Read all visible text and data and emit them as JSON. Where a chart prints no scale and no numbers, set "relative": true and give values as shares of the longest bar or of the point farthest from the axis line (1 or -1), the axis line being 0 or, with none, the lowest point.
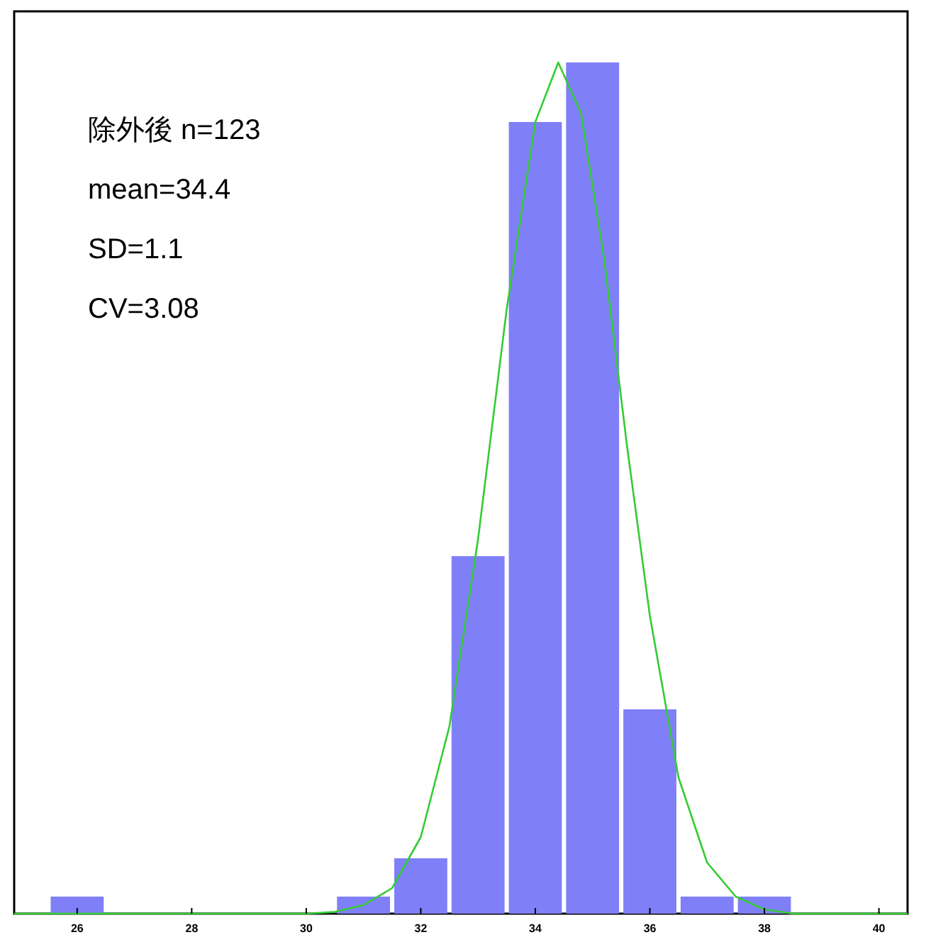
{
  "chart_data": {
    "type": "histogram",
    "relative": true,
    "color": "#7f7ff7",
    "bins": [
      25.5,
      26.5,
      27.5,
      28.5,
      29.5,
      30.5,
      31.5,
      32.5,
      33.5,
      34.5,
      35.5,
      36.5,
      37.5,
      38.5
    ],
    "values": [
      0.02,
      0,
      0,
      0,
      0,
      0.02,
      0.065,
      0.42,
      0.93,
      1,
      0.24,
      0.02,
      0.02
    ],
    "xlim": [
      24.9,
      40.5
    ],
    "xticks": [
      26,
      28,
      30,
      32,
      34,
      36,
      38,
      40
    ],
    "annotations": [
      "除外後 n=123",
      "mean=34.4",
      "SD=1.1",
      "CV=3.08"
    ],
    "series": [
      {
        "type": "line",
        "color": "#33cc33",
        "x": [
          24.9,
          30,
          30.5,
          31,
          31.5,
          32,
          32.5,
          33,
          33.5,
          34,
          34.4,
          34.8,
          35.2,
          35.6,
          36,
          36.5,
          37,
          37.5,
          38,
          38.5,
          40.5
        ],
        "values": [
          0,
          0,
          0.002,
          0.01,
          0.03,
          0.09,
          0.22,
          0.44,
          0.71,
          0.93,
          1,
          0.94,
          0.77,
          0.55,
          0.35,
          0.16,
          0.06,
          0.02,
          0.005,
          0,
          0
        ]
      }
    ]
  }
}
